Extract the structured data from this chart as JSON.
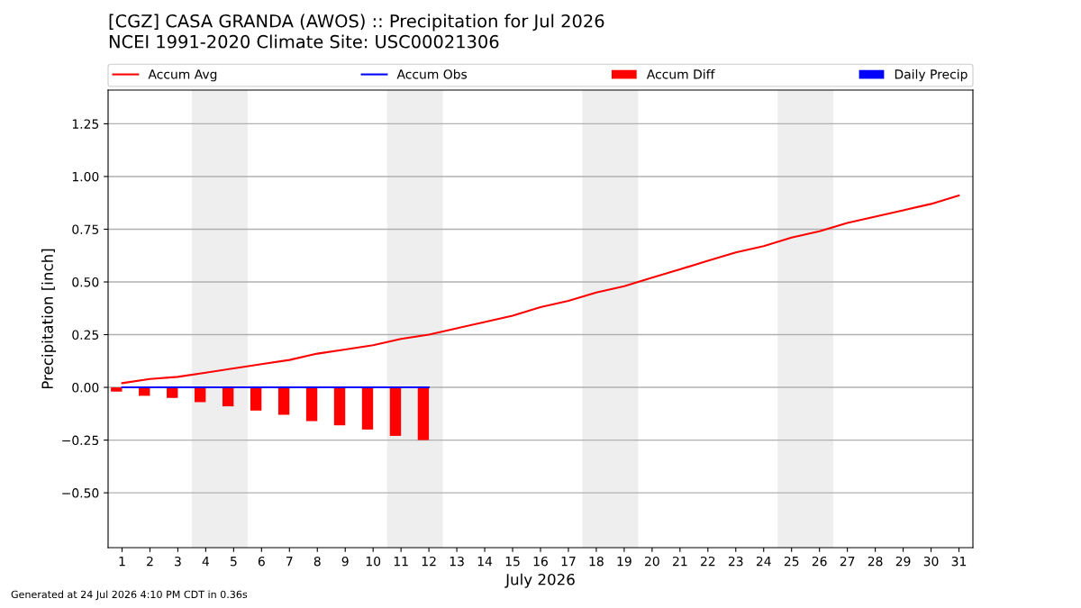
{
  "chart_data": {
    "type": "line",
    "title": "[CGZ] CASA GRANDA (AWOS) :: Precipitation for Jul 2026",
    "subtitle": "NCEI 1991-2020 Climate Site: USC00021306",
    "xlabel": "July 2026",
    "ylabel": "Precipitation [inch]",
    "x": [
      1,
      2,
      3,
      4,
      5,
      6,
      7,
      8,
      9,
      10,
      11,
      12,
      13,
      14,
      15,
      16,
      17,
      18,
      19,
      20,
      21,
      22,
      23,
      24,
      25,
      26,
      27,
      28,
      29,
      30,
      31
    ],
    "series": [
      {
        "name": "Accum Avg",
        "color": "#ff0000",
        "values": [
          0.02,
          0.04,
          0.05,
          0.07,
          0.09,
          0.11,
          0.13,
          0.16,
          0.18,
          0.2,
          0.23,
          0.25,
          0.28,
          0.31,
          0.34,
          0.38,
          0.41,
          0.45,
          0.48,
          0.52,
          0.56,
          0.6,
          0.64,
          0.67,
          0.71,
          0.74,
          0.78,
          0.81,
          0.84,
          0.87,
          0.91
        ]
      },
      {
        "name": "Accum Obs",
        "color": "#0000ff",
        "x": [
          1,
          2,
          3,
          4,
          5,
          6,
          7,
          8,
          9,
          10,
          11,
          12
        ],
        "values": [
          0,
          0,
          0,
          0,
          0,
          0,
          0,
          0,
          0,
          0,
          0,
          0
        ]
      },
      {
        "name": "Accum Diff",
        "type": "bar",
        "color": "#ff0000",
        "x": [
          1,
          2,
          3,
          4,
          5,
          6,
          7,
          8,
          9,
          10,
          11,
          12
        ],
        "values": [
          -0.02,
          -0.04,
          -0.05,
          -0.07,
          -0.09,
          -0.11,
          -0.13,
          -0.16,
          -0.18,
          -0.2,
          -0.23,
          -0.25
        ]
      },
      {
        "name": "Daily Precip",
        "type": "bar",
        "color": "#0000ff",
        "x": [
          1,
          2,
          3,
          4,
          5,
          6,
          7,
          8,
          9,
          10,
          11,
          12
        ],
        "values": [
          0,
          0,
          0,
          0,
          0,
          0,
          0,
          0,
          0,
          0,
          0,
          0
        ]
      }
    ],
    "xlim": [
      0.5,
      31.5
    ],
    "xticks": [
      1,
      2,
      3,
      4,
      5,
      6,
      7,
      8,
      9,
      10,
      11,
      12,
      13,
      14,
      15,
      16,
      17,
      18,
      19,
      20,
      21,
      22,
      23,
      24,
      25,
      26,
      27,
      28,
      29,
      30,
      31
    ],
    "ylim": [
      -0.76,
      1.41
    ],
    "yticks": [
      {
        "value": -0.5,
        "label": "−0.50"
      },
      {
        "value": -0.25,
        "label": "−0.25"
      },
      {
        "value": 0,
        "label": "0.00"
      },
      {
        "value": 0.25,
        "label": "0.25"
      },
      {
        "value": 0.5,
        "label": "0.50"
      },
      {
        "value": 0.75,
        "label": "0.75"
      },
      {
        "value": 1.0,
        "label": "1.00"
      },
      {
        "value": 1.25,
        "label": "1.25"
      }
    ],
    "bands": [
      {
        "axis": "x",
        "from": 3.5,
        "to": 5.5,
        "color": "#eeeeee"
      },
      {
        "axis": "x",
        "from": 10.5,
        "to": 12.5,
        "color": "#eeeeee"
      },
      {
        "axis": "x",
        "from": 17.5,
        "to": 19.5,
        "color": "#eeeeee"
      },
      {
        "axis": "x",
        "from": 24.5,
        "to": 26.5,
        "color": "#eeeeee"
      }
    ],
    "grid": "y",
    "legend": "top",
    "annotations": [
      "Generated at 24 Jul 2026 4:10 PM CDT in 0.36s"
    ]
  }
}
